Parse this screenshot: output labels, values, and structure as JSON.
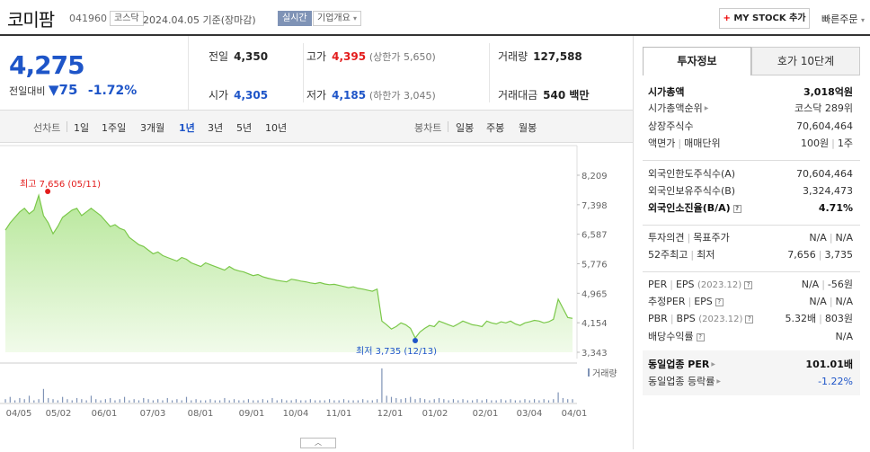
{
  "header": {
    "name": "코미팜",
    "code": "041960",
    "market": "코스닥",
    "date": "2024.04.05  기준(장마감)",
    "realtime": "실시간",
    "company": "기업개요",
    "mystock": "MY STOCK 추가",
    "quick": "빠른주문"
  },
  "summary": {
    "price": "4,275",
    "change_label": "전일대비",
    "change_value": "75",
    "change_pct": "-1.72%"
  },
  "grid": {
    "prev_label": "전일",
    "prev_value": "4,350",
    "high_label": "고가",
    "high_value": "4,395",
    "high_sub": "(상한가 5,650)",
    "vol_label": "거래량",
    "vol_value": "127,588",
    "open_label": "시가",
    "open_value": "4,305",
    "low_label": "저가",
    "low_value": "4,185",
    "low_sub": "(하한가 3,045)",
    "amt_label": "거래대금",
    "amt_value": "540 백만"
  },
  "periods": {
    "line_label": "선차트",
    "line": [
      "1일",
      "1주일",
      "3개월",
      "1년",
      "3년",
      "5년",
      "10년"
    ],
    "active": "1년",
    "candle_label": "봉차트",
    "candle": [
      "일봉",
      "주봉",
      "월봉"
    ]
  },
  "chart_data": {
    "type": "area",
    "high_label": "최고 7,656 (05/11)",
    "low_label": "최저 3,735 (12/13)",
    "yticks": [
      "8,209",
      "7,398",
      "6,587",
      "5,776",
      "4,965",
      "4,154",
      "3,343"
    ],
    "xticks": [
      "04/05",
      "05/02",
      "06/01",
      "07/03",
      "08/01",
      "09/01",
      "10/04",
      "11/01",
      "12/01",
      "01/02",
      "02/01",
      "03/04",
      "04/01"
    ],
    "ylim": [
      3343,
      8209
    ],
    "volume_label": "거래량",
    "accent": "#9ed86f",
    "price": [
      6700,
      6900,
      7050,
      7200,
      7300,
      7150,
      7250,
      7656,
      7100,
      6900,
      6600,
      6800,
      7050,
      7150,
      7250,
      7300,
      7100,
      7200,
      7300,
      7200,
      7100,
      6950,
      6800,
      6850,
      6750,
      6700,
      6500,
      6400,
      6300,
      6250,
      6150,
      6050,
      6100,
      6000,
      5950,
      5900,
      5850,
      5950,
      5900,
      5800,
      5750,
      5700,
      5800,
      5750,
      5700,
      5650,
      5600,
      5700,
      5620,
      5580,
      5550,
      5500,
      5450,
      5480,
      5420,
      5380,
      5350,
      5320,
      5300,
      5280,
      5350,
      5330,
      5300,
      5280,
      5250,
      5230,
      5260,
      5220,
      5200,
      5210,
      5180,
      5150,
      5120,
      5140,
      5100,
      5080,
      5050,
      5020,
      5080,
      4200,
      4100,
      3980,
      4050,
      4150,
      4100,
      4000,
      3735,
      3900,
      4000,
      4080,
      4050,
      4200,
      4150,
      4100,
      4050,
      4120,
      4200,
      4150,
      4100,
      4080,
      4050,
      4200,
      4150,
      4120,
      4180,
      4150,
      4200,
      4120,
      4080,
      4150,
      4180,
      4220,
      4200,
      4150,
      4180,
      4250,
      4800,
      4550,
      4300,
      4275
    ],
    "volume": [
      3,
      5,
      2,
      4,
      3,
      6,
      2,
      3,
      12,
      4,
      3,
      2,
      5,
      3,
      2,
      4,
      3,
      2,
      6,
      3,
      2,
      3,
      4,
      2,
      3,
      5,
      2,
      3,
      2,
      4,
      3,
      2,
      3,
      2,
      4,
      2,
      3,
      2,
      5,
      2,
      3,
      2,
      2,
      3,
      2,
      2,
      4,
      2,
      3,
      2,
      2,
      3,
      2,
      2,
      3,
      2,
      4,
      2,
      3,
      2,
      2,
      3,
      2,
      2,
      3,
      2,
      2,
      2,
      3,
      2,
      2,
      3,
      2,
      2,
      2,
      3,
      2,
      2,
      3,
      30,
      6,
      5,
      4,
      3,
      4,
      5,
      3,
      4,
      3,
      2,
      3,
      4,
      3,
      2,
      3,
      2,
      3,
      2,
      2,
      3,
      2,
      3,
      2,
      2,
      3,
      2,
      3,
      2,
      2,
      3,
      2,
      3,
      2,
      3,
      2,
      3,
      9,
      4,
      3,
      3
    ]
  },
  "right": {
    "tab_active": "투자정보",
    "tab_other": "호가 10단계",
    "cap_label": "시가총액",
    "cap_value": "3,018억원",
    "rank_label": "시가총액순위",
    "rank_value": "코스닥 289위",
    "shares_label": "상장주식수",
    "shares_value": "70,604,464",
    "par_label": "액면가",
    "unit_label": "매매단위",
    "par_value": "100원",
    "unit_value": "1주",
    "f_limit_label": "외국인한도주식수(A)",
    "f_limit_value": "70,604,464",
    "f_hold_label": "외국인보유주식수(B)",
    "f_hold_value": "3,324,473",
    "f_ratio_label": "외국인소진율(B/A)",
    "f_ratio_value": "4.71%",
    "opinion_label": "투자의견",
    "target_label": "목표주가",
    "opinion_value": "N/A",
    "target_value": "N/A",
    "w52_label": "52주최고",
    "w52_low_label": "최저",
    "w52_high": "7,656",
    "w52_low": "3,735",
    "per_label": "PER",
    "eps_label": "EPS",
    "per_date": "(2023.12)",
    "per_value": "N/A",
    "eps_value": "-56원",
    "eper_label": "추정PER",
    "eeps_label": "EPS",
    "eper_value": "N/A",
    "eeps_value": "N/A",
    "pbr_label": "PBR",
    "bps_label": "BPS",
    "pbr_date": "(2023.12)",
    "pbr_value": "5.32배",
    "bps_value": "803원",
    "div_label": "배당수익률",
    "div_value": "N/A",
    "ind_per_label": "동일업종 PER",
    "ind_per_value": "101.01배",
    "ind_rate_label": "동일업종 등락률",
    "ind_rate_value": "-1.22%"
  }
}
